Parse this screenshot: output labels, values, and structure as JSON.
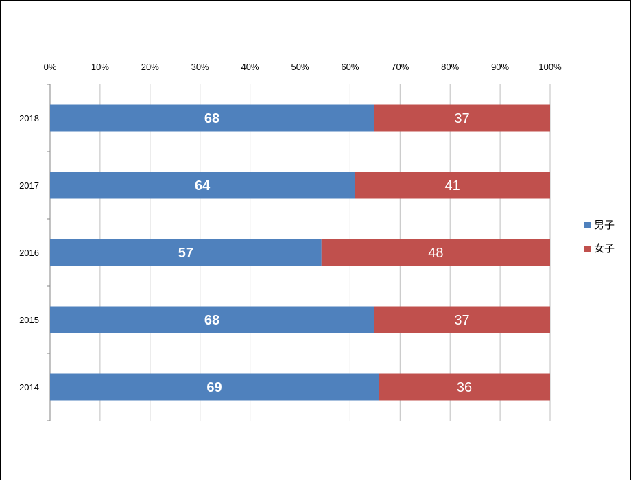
{
  "chart_data": {
    "type": "bar",
    "orientation": "horizontal",
    "stacking": "percent",
    "categories": [
      "2018",
      "2017",
      "2016",
      "2015",
      "2014"
    ],
    "series": [
      {
        "name": "男子",
        "values": [
          68,
          64,
          57,
          68,
          69
        ],
        "color": "#4F81BD"
      },
      {
        "name": "女子",
        "values": [
          37,
          41,
          48,
          37,
          36
        ],
        "color": "#C0504D"
      }
    ],
    "x_ticks": [
      "0%",
      "10%",
      "20%",
      "30%",
      "40%",
      "50%",
      "60%",
      "70%",
      "80%",
      "90%",
      "100%"
    ],
    "xlim": [
      0,
      100
    ],
    "x_axis_position": "top",
    "grid": true,
    "legend_position": "right"
  }
}
